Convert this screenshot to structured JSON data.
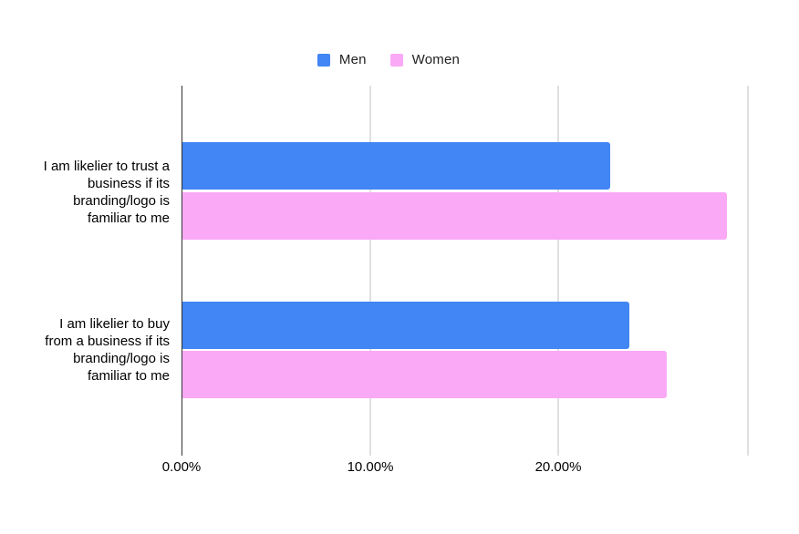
{
  "chart": {
    "background": "#FFFFFF",
    "axis_color": "#333333",
    "gridline_color": "#E0E0E0",
    "text_color": "#000000"
  },
  "legend": {
    "items": [
      {
        "label": "Men",
        "color": "#4285F4"
      },
      {
        "label": "Women",
        "color": "#F9A9F6"
      }
    ]
  },
  "chart_data": {
    "type": "bar",
    "orientation": "horizontal",
    "title": "",
    "xlabel": "",
    "ylabel": "",
    "categories": [
      {
        "label": "I am likelier to trust a business if its branding/logo is familiar to me",
        "lines": [
          "I am likelier to trust a",
          "business if its",
          "branding/logo is",
          "familiar to me"
        ]
      },
      {
        "label": "I am likelier to buy from a business if its branding/logo is familiar to me",
        "lines": [
          "I am likelier to buy",
          "from a business if its",
          "branding/logo is",
          "familiar to me"
        ]
      }
    ],
    "series": [
      {
        "name": "Men",
        "color": "#4285F4",
        "values": [
          22.7,
          23.7
        ]
      },
      {
        "name": "Women",
        "color": "#F9A9F6",
        "values": [
          28.9,
          25.7
        ]
      }
    ],
    "x_ticks": [
      {
        "value": 0,
        "label": "0.00%"
      },
      {
        "value": 10,
        "label": "10.00%"
      },
      {
        "value": 20,
        "label": "20.00%"
      },
      {
        "value": 30,
        "label": ""
      }
    ],
    "xlim": [
      0,
      31.9
    ],
    "grid": true,
    "legend_position": "top-center"
  }
}
